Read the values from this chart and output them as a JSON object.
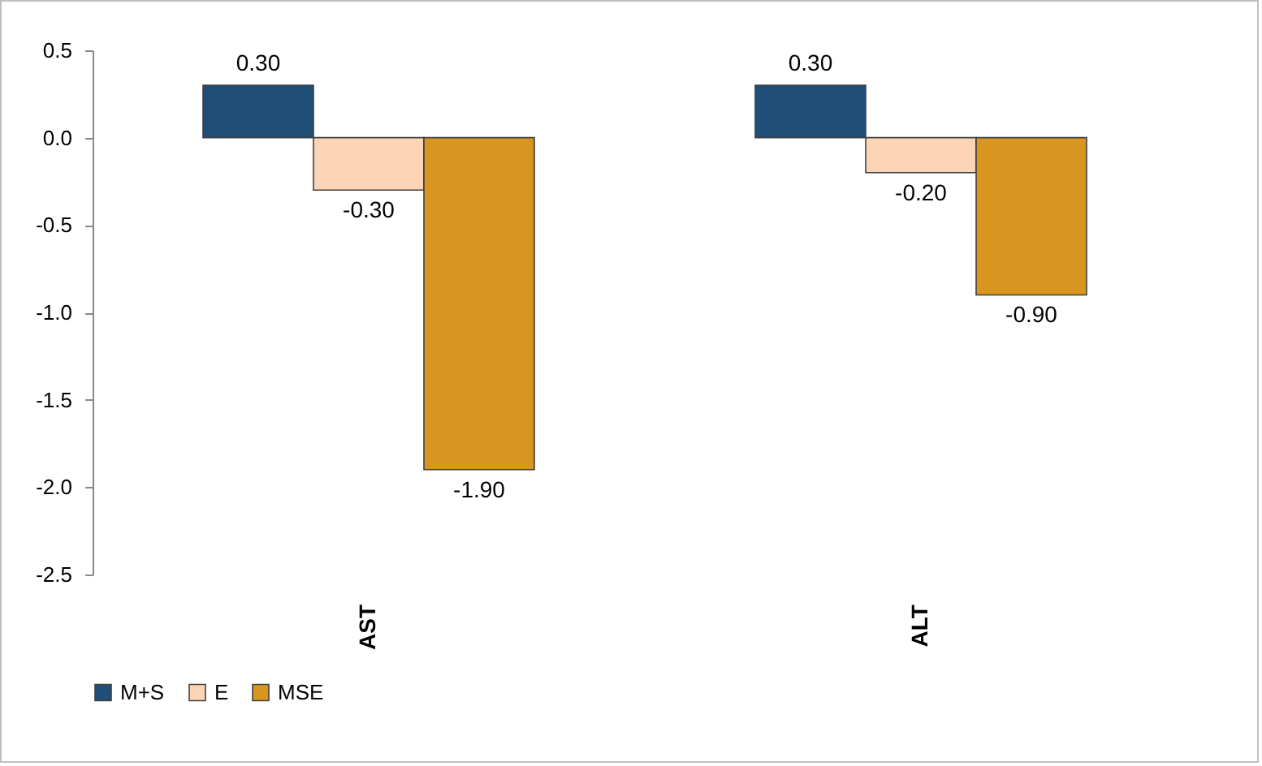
{
  "chart_data": {
    "type": "bar",
    "categories": [
      "AST",
      "ALT"
    ],
    "series": [
      {
        "name": "M+S",
        "color": "#1f4e79",
        "values": [
          0.3,
          0.3
        ],
        "value_labels": [
          "0.30",
          "0.30"
        ]
      },
      {
        "name": "E",
        "color": "#fbd5b5",
        "values": [
          -0.3,
          -0.2
        ],
        "value_labels": [
          "-0.30",
          "-0.20"
        ]
      },
      {
        "name": "MSE",
        "color": "#d8951f",
        "values": [
          -1.9,
          -0.9
        ],
        "value_labels": [
          "-1.90",
          "-0.90"
        ]
      }
    ],
    "ylim": [
      -2.5,
      0.5
    ],
    "yticks": [
      {
        "value": 0.5,
        "label": "0.5"
      },
      {
        "value": 0,
        "label": "0.0"
      },
      {
        "value": -0.5,
        "label": "-0.5"
      },
      {
        "value": -1,
        "label": "-1.0"
      },
      {
        "value": -1.5,
        "label": "-1.5"
      },
      {
        "value": -2,
        "label": "-2.0"
      },
      {
        "value": -2.5,
        "label": "-2.5"
      }
    ],
    "grid": false,
    "legend": "bottom"
  }
}
